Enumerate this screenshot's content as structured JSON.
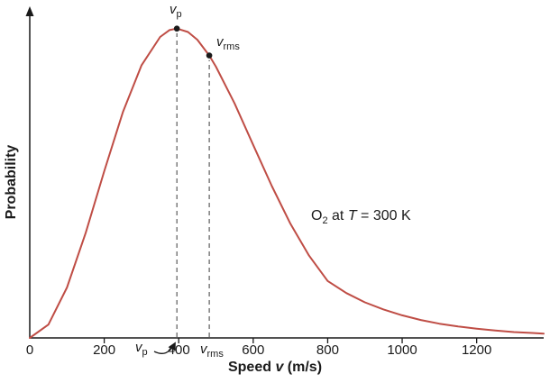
{
  "chart_data": {
    "type": "line",
    "xlabel": "Speed v (m/s)",
    "ylabel": "Probability",
    "annotation": "O2 at T = 300 K",
    "xlim": [
      0,
      1380
    ],
    "ylim": [
      0,
      1.04
    ],
    "xticks": [
      0,
      200,
      400,
      600,
      800,
      1000,
      1200
    ],
    "grid": false,
    "legend": false,
    "curve_color": "#bf4d45",
    "series": [
      {
        "name": "O2 speed probability distribution at T = 300 K",
        "x": [
          0,
          50,
          100,
          150,
          200,
          250,
          300,
          350,
          375,
          395,
          425,
          450,
          482,
          500,
          550,
          600,
          650,
          700,
          750,
          800,
          850,
          900,
          950,
          1000,
          1050,
          1100,
          1150,
          1200,
          1250,
          1300,
          1350,
          1380
        ],
        "y": [
          0,
          0.043,
          0.163,
          0.339,
          0.539,
          0.73,
          0.881,
          0.973,
          0.995,
          1.0,
          0.989,
          0.964,
          0.913,
          0.877,
          0.758,
          0.624,
          0.491,
          0.369,
          0.266,
          0.184,
          0.145,
          0.115,
          0.092,
          0.073,
          0.058,
          0.046,
          0.037,
          0.03,
          0.024,
          0.019,
          0.016,
          0.014
        ]
      }
    ],
    "markers": [
      {
        "id": "vp",
        "label": "vp",
        "x": 395,
        "y": 1.0
      },
      {
        "id": "vrms",
        "label": "vrms",
        "x": 482,
        "y": 0.913
      }
    ]
  },
  "labels": {
    "ylabel": "Probability",
    "xlabel": {
      "pre": "Speed ",
      "var": "v",
      "post": " (m/s)"
    },
    "annotation": {
      "element": "O",
      "element_sub": "2",
      "mid": " at ",
      "temp_var": "T",
      "value": " = 300 K"
    },
    "vp": {
      "base": "v",
      "sub": "p"
    },
    "vrms": {
      "base": "v",
      "sub": "rms"
    }
  }
}
